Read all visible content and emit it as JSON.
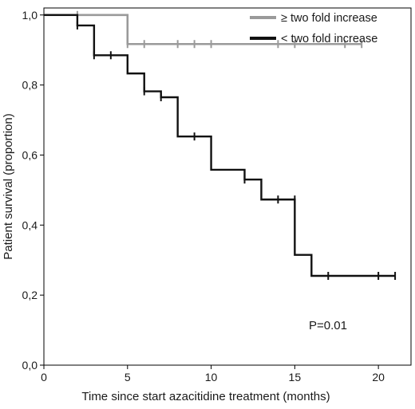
{
  "chart_data": {
    "type": "line",
    "step": true,
    "xlabel": "Time since start azacitidine treatment (months)",
    "ylabel": "Patient survival (proportion)",
    "xlim": [
      0,
      22
    ],
    "ylim": [
      0,
      1.02
    ],
    "x_ticks": [
      0,
      5,
      10,
      15,
      20
    ],
    "x_tick_labels": [
      "0",
      "5",
      "10",
      "15",
      "20"
    ],
    "y_ticks": [
      0.0,
      0.2,
      0.4,
      0.6,
      0.8,
      1.0
    ],
    "y_tick_labels": [
      "0,0",
      "0,2",
      "0,4",
      "0,6",
      "0,8",
      "1,0"
    ],
    "legend_position": "top-right",
    "annotation": "P=0.01",
    "series": [
      {
        "name": "≥ two fold increase",
        "color": "#9a9a9a",
        "steps": [
          [
            0,
            1.0
          ],
          [
            5,
            0.917
          ],
          [
            19,
            0.917
          ]
        ],
        "censored": [
          [
            2,
            1.0
          ],
          [
            5,
            0.917
          ],
          [
            6,
            0.917
          ],
          [
            8,
            0.917
          ],
          [
            9,
            0.917
          ],
          [
            10,
            0.917
          ],
          [
            14,
            0.917
          ],
          [
            15,
            0.917
          ],
          [
            18,
            0.917
          ],
          [
            19,
            0.917
          ]
        ]
      },
      {
        "name": "< two fold increase",
        "color": "#111111",
        "steps": [
          [
            0,
            1.0
          ],
          [
            2,
            0.97
          ],
          [
            3,
            0.885
          ],
          [
            5,
            0.833
          ],
          [
            6,
            0.782
          ],
          [
            7,
            0.765
          ],
          [
            8,
            0.653
          ],
          [
            10,
            0.558
          ],
          [
            12,
            0.53
          ],
          [
            13,
            0.473
          ],
          [
            15,
            0.315
          ],
          [
            16,
            0.255
          ],
          [
            21,
            0.255
          ]
        ],
        "censored": [
          [
            2,
            0.97
          ],
          [
            3,
            0.885
          ],
          [
            4,
            0.885
          ],
          [
            6,
            0.782
          ],
          [
            7,
            0.765
          ],
          [
            9,
            0.653
          ],
          [
            12,
            0.53
          ],
          [
            14,
            0.473
          ],
          [
            15,
            0.473
          ],
          [
            17,
            0.255
          ],
          [
            20,
            0.255
          ],
          [
            21,
            0.255
          ]
        ]
      }
    ]
  }
}
